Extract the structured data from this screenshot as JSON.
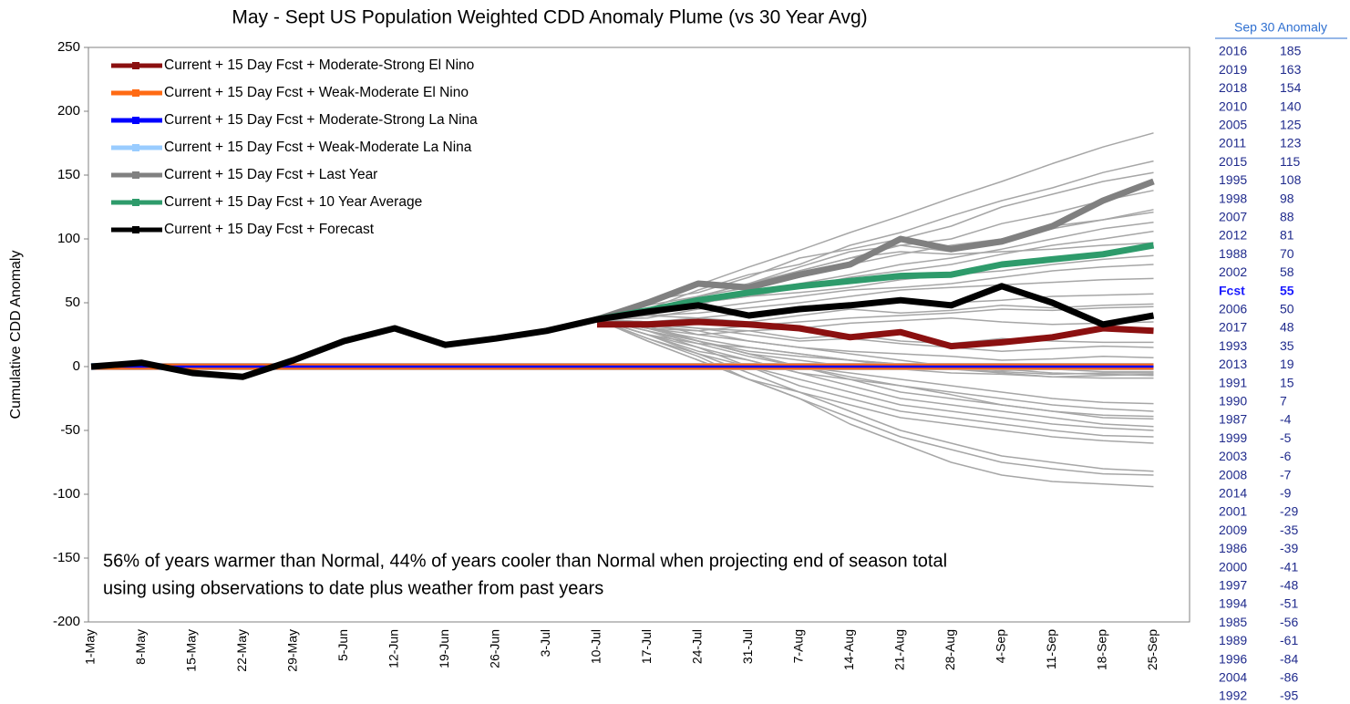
{
  "chart_data": {
    "type": "line",
    "title": "May - Sept US Population Weighted CDD Anomaly Plume (vs 30 Year Avg)",
    "ylabel": "Cumulative CDD Anomaly",
    "annotation": [
      "56% of years warmer than Normal, 44% of years cooler than Normal when projecting end of season total",
      "using using observations to date plus weather from past years"
    ],
    "categories": [
      "1-May",
      "8-May",
      "15-May",
      "22-May",
      "29-May",
      "5-Jun",
      "12-Jun",
      "19-Jun",
      "26-Jun",
      "3-Jul",
      "10-Jul",
      "17-Jul",
      "24-Jul",
      "31-Jul",
      "7-Aug",
      "14-Aug",
      "21-Aug",
      "28-Aug",
      "4-Sep",
      "11-Sep",
      "18-Sep",
      "25-Sep"
    ],
    "ylim": [
      -200,
      250
    ],
    "yticks": [
      -200,
      -150,
      -100,
      -50,
      0,
      50,
      100,
      150,
      200,
      250
    ],
    "grid": false,
    "series": [
      {
        "name": "Current + 15 Day Fcst + Moderate-Strong El Nino",
        "color": "#8b1010",
        "values": [
          null,
          null,
          null,
          null,
          null,
          null,
          null,
          null,
          null,
          null,
          33,
          33,
          35,
          33,
          30,
          23,
          27,
          16,
          19,
          23,
          30,
          28
        ]
      },
      {
        "name": "Current + 15 Day Fcst + Weak-Moderate El Nino",
        "color": "#ff6a13",
        "values": [
          0,
          0,
          0,
          0,
          0,
          0,
          0,
          0,
          0,
          0,
          0,
          0,
          0,
          0,
          0,
          0,
          0,
          0,
          0,
          0,
          0,
          0
        ]
      },
      {
        "name": "Current + 15 Day Fcst + Moderate-Strong La Nina",
        "color": "#0000ff",
        "values": [
          0,
          0,
          0,
          0,
          0,
          0,
          0,
          0,
          0,
          0,
          0,
          0,
          0,
          0,
          0,
          0,
          0,
          0,
          0,
          0,
          0,
          0
        ]
      },
      {
        "name": "Current + 15 Day Fcst + Weak-Moderate La Nina",
        "color": "#99ccff",
        "values": [
          0,
          0,
          0,
          0,
          0,
          0,
          0,
          0,
          0,
          0,
          0,
          0,
          0,
          0,
          0,
          0,
          0,
          0,
          0,
          0,
          0,
          0
        ]
      },
      {
        "name": "Current + 15 Day Fcst + Last Year",
        "color": "#808080",
        "values": [
          null,
          null,
          null,
          null,
          null,
          null,
          null,
          null,
          null,
          null,
          37,
          50,
          65,
          62,
          72,
          80,
          100,
          92,
          98,
          110,
          130,
          145
        ]
      },
      {
        "name": "Current + 15 Day Fcst + 10 Year Average",
        "color": "#2e9b6b",
        "values": [
          null,
          null,
          null,
          null,
          null,
          null,
          null,
          null,
          null,
          null,
          37,
          44,
          52,
          58,
          63,
          67,
          71,
          72,
          80,
          84,
          88,
          95
        ]
      },
      {
        "name": "Current + 15 Day Fcst + Forecast",
        "color": "#000000",
        "values": [
          0,
          3,
          -5,
          -8,
          5,
          20,
          30,
          17,
          22,
          28,
          37,
          43,
          48,
          40,
          45,
          48,
          52,
          48,
          63,
          50,
          33,
          40
        ]
      }
    ],
    "plume": {
      "color": "#a6a6a6",
      "lines": [
        [
          null,
          null,
          null,
          null,
          null,
          null,
          null,
          null,
          null,
          null,
          37,
          50,
          64,
          78,
          91,
          105,
          118,
          132,
          145,
          159,
          172,
          183
        ],
        [
          null,
          null,
          null,
          null,
          null,
          null,
          null,
          null,
          null,
          null,
          37,
          45,
          60,
          72,
          80,
          95,
          105,
          118,
          130,
          140,
          152,
          161
        ],
        [
          null,
          null,
          null,
          null,
          null,
          null,
          null,
          null,
          null,
          null,
          37,
          52,
          58,
          70,
          85,
          92,
          100,
          110,
          125,
          135,
          145,
          152
        ],
        [
          null,
          null,
          null,
          null,
          null,
          null,
          null,
          null,
          null,
          null,
          37,
          48,
          55,
          65,
          78,
          90,
          95,
          100,
          112,
          120,
          130,
          138
        ],
        [
          null,
          null,
          null,
          null,
          null,
          null,
          null,
          null,
          null,
          null,
          37,
          44,
          55,
          62,
          70,
          80,
          88,
          95,
          100,
          108,
          115,
          123
        ],
        [
          null,
          null,
          null,
          null,
          null,
          null,
          null,
          null,
          null,
          null,
          37,
          42,
          48,
          60,
          75,
          85,
          95,
          90,
          100,
          110,
          115,
          121
        ],
        [
          null,
          null,
          null,
          null,
          null,
          null,
          null,
          null,
          null,
          null,
          37,
          45,
          52,
          58,
          65,
          72,
          80,
          85,
          92,
          100,
          108,
          113
        ],
        [
          null,
          null,
          null,
          null,
          null,
          null,
          null,
          null,
          null,
          null,
          37,
          40,
          50,
          55,
          62,
          70,
          75,
          80,
          88,
          95,
          100,
          106
        ],
        [
          null,
          null,
          null,
          null,
          null,
          null,
          null,
          null,
          null,
          null,
          37,
          45,
          55,
          65,
          75,
          85,
          90,
          88,
          90,
          92,
          95,
          97
        ],
        [
          null,
          null,
          null,
          null,
          null,
          null,
          null,
          null,
          null,
          null,
          37,
          42,
          50,
          55,
          58,
          62,
          68,
          72,
          75,
          80,
          84,
          87
        ],
        [
          null,
          null,
          null,
          null,
          null,
          null,
          null,
          null,
          null,
          null,
          37,
          38,
          45,
          50,
          55,
          60,
          62,
          65,
          70,
          75,
          78,
          80
        ],
        [
          null,
          null,
          null,
          null,
          null,
          null,
          null,
          null,
          null,
          null,
          37,
          40,
          42,
          46,
          50,
          55,
          60,
          62,
          64,
          66,
          68,
          69
        ],
        [
          null,
          null,
          null,
          null,
          null,
          null,
          null,
          null,
          null,
          null,
          37,
          35,
          38,
          42,
          45,
          48,
          52,
          50,
          52,
          55,
          56,
          57
        ],
        [
          null,
          null,
          null,
          null,
          null,
          null,
          null,
          null,
          null,
          null,
          37,
          40,
          38,
          35,
          40,
          45,
          42,
          44,
          48,
          46,
          48,
          49
        ],
        [
          null,
          null,
          null,
          null,
          null,
          null,
          null,
          null,
          null,
          null,
          37,
          30,
          28,
          32,
          35,
          38,
          40,
          42,
          45,
          44,
          46,
          47
        ],
        [
          null,
          null,
          null,
          null,
          null,
          null,
          null,
          null,
          null,
          null,
          37,
          33,
          30,
          28,
          30,
          34,
          36,
          38,
          35,
          33,
          34,
          35
        ],
        [
          null,
          null,
          null,
          null,
          null,
          null,
          null,
          null,
          null,
          null,
          37,
          30,
          25,
          28,
          22,
          25,
          20,
          18,
          22,
          20,
          19,
          19
        ],
        [
          null,
          null,
          null,
          null,
          null,
          null,
          null,
          null,
          null,
          null,
          37,
          35,
          30,
          25,
          20,
          22,
          18,
          15,
          12,
          14,
          16,
          15
        ],
        [
          null,
          null,
          null,
          null,
          null,
          null,
          null,
          null,
          null,
          null,
          37,
          32,
          28,
          20,
          15,
          12,
          10,
          8,
          5,
          6,
          8,
          7
        ],
        [
          null,
          null,
          null,
          null,
          null,
          null,
          null,
          null,
          null,
          null,
          37,
          30,
          22,
          15,
          10,
          5,
          2,
          0,
          -3,
          -2,
          -4,
          -4
        ],
        [
          null,
          null,
          null,
          null,
          null,
          null,
          null,
          null,
          null,
          null,
          37,
          28,
          20,
          12,
          8,
          5,
          0,
          -2,
          -4,
          -6,
          -5,
          -5
        ],
        [
          null,
          null,
          null,
          null,
          null,
          null,
          null,
          null,
          null,
          null,
          37,
          25,
          18,
          15,
          10,
          5,
          2,
          -2,
          -5,
          -8,
          -7,
          -6
        ],
        [
          null,
          null,
          null,
          null,
          null,
          null,
          null,
          null,
          null,
          null,
          37,
          35,
          25,
          20,
          15,
          10,
          5,
          0,
          -2,
          -5,
          -6,
          -7
        ],
        [
          null,
          null,
          null,
          null,
          null,
          null,
          null,
          null,
          null,
          null,
          37,
          32,
          20,
          10,
          5,
          0,
          -2,
          -5,
          -6,
          -8,
          -9,
          -9
        ],
        [
          null,
          null,
          null,
          null,
          null,
          null,
          null,
          null,
          null,
          null,
          37,
          30,
          20,
          10,
          0,
          -5,
          -10,
          -15,
          -20,
          -25,
          -28,
          -29
        ],
        [
          null,
          null,
          null,
          null,
          null,
          null,
          null,
          null,
          null,
          null,
          37,
          28,
          18,
          8,
          0,
          -10,
          -15,
          -20,
          -25,
          -30,
          -33,
          -35
        ],
        [
          null,
          null,
          null,
          null,
          null,
          null,
          null,
          null,
          null,
          null,
          37,
          25,
          15,
          5,
          -5,
          -10,
          -20,
          -25,
          -30,
          -35,
          -38,
          -39
        ],
        [
          null,
          null,
          null,
          null,
          null,
          null,
          null,
          null,
          null,
          null,
          37,
          30,
          20,
          10,
          0,
          -8,
          -15,
          -22,
          -30,
          -35,
          -40,
          -41
        ],
        [
          null,
          null,
          null,
          null,
          null,
          null,
          null,
          null,
          null,
          null,
          37,
          25,
          12,
          5,
          -5,
          -15,
          -25,
          -30,
          -35,
          -40,
          -45,
          -47
        ],
        [
          null,
          null,
          null,
          null,
          null,
          null,
          null,
          null,
          null,
          null,
          37,
          28,
          15,
          0,
          -10,
          -20,
          -30,
          -35,
          -40,
          -45,
          -48,
          -50
        ],
        [
          null,
          null,
          null,
          null,
          null,
          null,
          null,
          null,
          null,
          null,
          37,
          22,
          10,
          0,
          -15,
          -25,
          -35,
          -40,
          -45,
          -50,
          -54,
          -55
        ],
        [
          null,
          null,
          null,
          null,
          null,
          null,
          null,
          null,
          null,
          null,
          37,
          20,
          5,
          -10,
          -20,
          -30,
          -40,
          -45,
          -50,
          -55,
          -58,
          -60
        ],
        [
          null,
          null,
          null,
          null,
          null,
          null,
          null,
          null,
          null,
          null,
          37,
          25,
          10,
          -5,
          -20,
          -35,
          -50,
          -60,
          -70,
          -75,
          -80,
          -82
        ],
        [
          null,
          null,
          null,
          null,
          null,
          null,
          null,
          null,
          null,
          null,
          37,
          20,
          5,
          -10,
          -25,
          -40,
          -55,
          -65,
          -75,
          -80,
          -84,
          -85
        ],
        [
          null,
          null,
          null,
          null,
          null,
          null,
          null,
          null,
          null,
          null,
          37,
          22,
          8,
          -10,
          -25,
          -45,
          -60,
          -75,
          -85,
          -90,
          -92,
          -94
        ]
      ]
    }
  },
  "table": {
    "title": "Sep 30 Anomaly",
    "rows": [
      [
        "2016",
        185
      ],
      [
        "2019",
        163
      ],
      [
        "2018",
        154
      ],
      [
        "2010",
        140
      ],
      [
        "2005",
        125
      ],
      [
        "2011",
        123
      ],
      [
        "2015",
        115
      ],
      [
        "1995",
        108
      ],
      [
        "1998",
        98
      ],
      [
        "2007",
        88
      ],
      [
        "2012",
        81
      ],
      [
        "1988",
        70
      ],
      [
        "2002",
        58
      ],
      [
        "Fcst",
        55
      ],
      [
        "2006",
        50
      ],
      [
        "2017",
        48
      ],
      [
        "1993",
        35
      ],
      [
        "2013",
        19
      ],
      [
        "1991",
        15
      ],
      [
        "1990",
        7
      ],
      [
        "1987",
        -4
      ],
      [
        "1999",
        -5
      ],
      [
        "2003",
        -6
      ],
      [
        "2008",
        -7
      ],
      [
        "2014",
        -9
      ],
      [
        "2001",
        -29
      ],
      [
        "2009",
        -35
      ],
      [
        "1986",
        -39
      ],
      [
        "2000",
        -41
      ],
      [
        "1997",
        -48
      ],
      [
        "1994",
        -51
      ],
      [
        "1985",
        -56
      ],
      [
        "1989",
        -61
      ],
      [
        "1996",
        -84
      ],
      [
        "2004",
        -86
      ],
      [
        "1992",
        -95
      ]
    ]
  }
}
